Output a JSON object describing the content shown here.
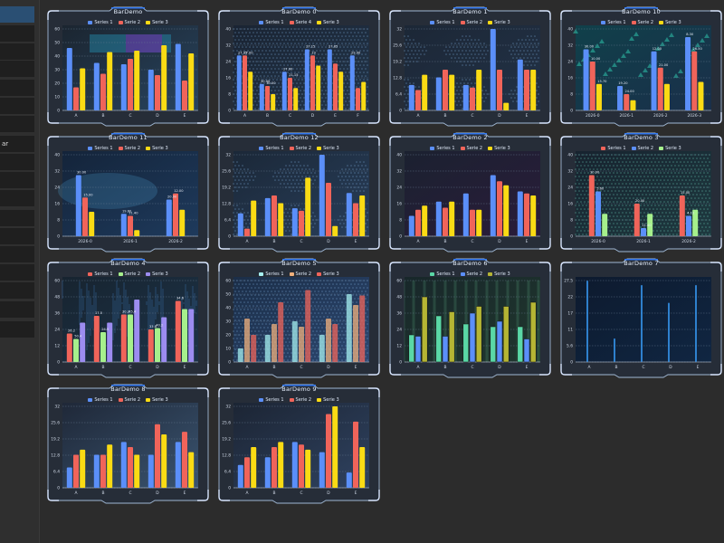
{
  "sidebar": {
    "items": [
      {
        "label": "",
        "selected": true
      },
      {
        "label": ""
      },
      {
        "label": ""
      },
      {
        "label": ""
      },
      {
        "label": ""
      },
      {
        "label": ""
      },
      {
        "label": ""
      },
      {
        "label": "ar"
      },
      {
        "label": ""
      },
      {
        "label": ""
      },
      {
        "label": ""
      },
      {
        "label": ""
      },
      {
        "label": ""
      },
      {
        "label": ""
      },
      {
        "label": ""
      },
      {
        "label": ""
      },
      {
        "label": ""
      },
      {
        "label": ""
      }
    ]
  },
  "colors": {
    "s1": "#5b8ff9",
    "s2": "#f0645a",
    "s3": "#fadb14",
    "s4": "#5ad8a6",
    "frame": "#9fb7d3",
    "glow": "#2f7bff"
  },
  "charts": [
    {
      "title": "BarDemo",
      "bg": "pattern1",
      "legend": [
        {
          "name": "Series 1",
          "color": "#5b8ff9"
        },
        {
          "name": "Serie 2",
          "color": "#f0645a"
        },
        {
          "name": "Serie 3",
          "color": "#fadb14"
        }
      ]
    },
    {
      "title": "BarDemo 0",
      "bg": "hex",
      "legend": [
        {
          "name": "Series 1",
          "color": "#5b8ff9"
        },
        {
          "name": "Serie 4",
          "color": "#f0645a"
        },
        {
          "name": "Serie 3",
          "color": "#fadb14"
        }
      ]
    },
    {
      "title": "BarDemo 1",
      "bg": "map",
      "legend": [
        {
          "name": "Series 1",
          "color": "#5b8ff9"
        },
        {
          "name": "Serie 2",
          "color": "#f0645a"
        },
        {
          "name": "Serie 3",
          "color": "#fadb14"
        }
      ]
    },
    {
      "title": "BarDemo 10",
      "bg": "teal",
      "legend": [
        {
          "name": "Series 1",
          "color": "#5b8ff9"
        },
        {
          "name": "Serie 2",
          "color": "#f0645a"
        },
        {
          "name": "Serie 3",
          "color": "#fadb14"
        }
      ]
    },
    {
      "title": "BarDemo 11",
      "bg": "space",
      "legend": [
        {
          "name": "Series 1",
          "color": "#5b8ff9"
        },
        {
          "name": "Serie 2",
          "color": "#f0645a"
        },
        {
          "name": "Serie 3",
          "color": "#fadb14"
        }
      ]
    },
    {
      "title": "BarDemo 12",
      "bg": "map2",
      "legend": [
        {
          "name": "Series 1",
          "color": "#5b8ff9"
        },
        {
          "name": "Serie 2",
          "color": "#f0645a"
        },
        {
          "name": "Serie 3",
          "color": "#fadb14"
        }
      ]
    },
    {
      "title": "BarDemo 2",
      "bg": "dark",
      "legend": [
        {
          "name": "Series 1",
          "color": "#5b8ff9"
        },
        {
          "name": "Serie 2",
          "color": "#f0645a"
        },
        {
          "name": "Serie 3",
          "color": "#fadb14"
        }
      ]
    },
    {
      "title": "BarDemo 3",
      "bg": "dots",
      "legend": [
        {
          "name": "Series 1",
          "color": "#f0645a"
        },
        {
          "name": "Serie 2",
          "color": "#5b8ff9"
        },
        {
          "name": "Serie 3",
          "color": "#a6f08c"
        }
      ]
    },
    {
      "title": "BarDemo 4",
      "bg": "rain",
      "legend": [
        {
          "name": "Series 1",
          "color": "#f0645a"
        },
        {
          "name": "Serie 2",
          "color": "#a6f08c"
        },
        {
          "name": "Serie 3",
          "color": "#9c8cf0"
        }
      ]
    },
    {
      "title": "BarDemo 5",
      "bg": "hexblue",
      "legend": [
        {
          "name": "Series 1",
          "color": "#a6f0f0"
        },
        {
          "name": "Serie 2",
          "color": "#f0b07c"
        },
        {
          "name": "Serie 3",
          "color": "#f0645a"
        }
      ]
    },
    {
      "title": "BarDemo 6",
      "bg": "green",
      "legend": [
        {
          "name": "Series 1",
          "color": "#5ad8a6"
        },
        {
          "name": "Serie 2",
          "color": "#5b8ff9"
        },
        {
          "name": "Serie 3",
          "color": "#b5b534"
        }
      ]
    },
    {
      "title": "BarDemo 7",
      "bg": "blueglow",
      "legend": []
    },
    {
      "title": "BarDemo 8",
      "bg": "light",
      "legend": [
        {
          "name": "Series 1",
          "color": "#5b8ff9"
        },
        {
          "name": "Serie 2",
          "color": "#f0645a"
        },
        {
          "name": "Serie 3",
          "color": "#fadb14"
        }
      ]
    },
    {
      "title": "BarDemo 9",
      "bg": "light2",
      "legend": [
        {
          "name": "Series 1",
          "color": "#5b8ff9"
        },
        {
          "name": "Serie 2",
          "color": "#f0645a"
        },
        {
          "name": "Serie 3",
          "color": "#fadb14"
        }
      ]
    }
  ],
  "chart_data": [
    {
      "type": "bar",
      "title": "BarDemo",
      "categories": [
        "A",
        "B",
        "C",
        "D",
        "E"
      ],
      "y_ticks": [
        "0",
        "10",
        "20",
        "30",
        "40",
        "50",
        "60"
      ],
      "ylim": [
        0,
        60
      ],
      "series": [
        {
          "name": "Series 1",
          "values": [
            46,
            35,
            34,
            30,
            49
          ]
        },
        {
          "name": "Serie 2",
          "values": [
            17,
            27,
            38,
            26,
            22
          ]
        },
        {
          "name": "Serie 3",
          "values": [
            31,
            43,
            44,
            48,
            42
          ]
        }
      ]
    },
    {
      "type": "bar",
      "title": "BarDemo 0",
      "categories": [
        "A",
        "B",
        "C",
        "D",
        "E",
        "F"
      ],
      "y_ticks": [
        "0",
        "8",
        "16",
        "24",
        "32",
        "40"
      ],
      "ylim": [
        0,
        40
      ],
      "series": [
        {
          "name": "Series 1",
          "values": [
            27,
            13,
            19,
            30,
            30,
            27
          ]
        },
        {
          "name": "Serie 4",
          "values": [
            27,
            12,
            16,
            27,
            23,
            11
          ]
        },
        {
          "name": "Serie 3",
          "values": [
            19,
            8,
            11,
            22,
            19,
            14
          ]
        }
      ],
      "labels": [
        "27.15",
        "30.00",
        "27.00",
        "27.15",
        "27.85",
        "29.00",
        "27.00",
        "30.00",
        "21.15",
        "19"
      ]
    },
    {
      "type": "bar",
      "title": "BarDemo 1",
      "categories": [
        "A",
        "B",
        "C",
        "D",
        "E"
      ],
      "y_ticks": [
        "0",
        "6.4",
        "12.8",
        "19.2",
        "25.6",
        "32"
      ],
      "ylim": [
        0,
        32
      ],
      "series": [
        {
          "name": "Series 1",
          "values": [
            10,
            13,
            10,
            32,
            20
          ]
        },
        {
          "name": "Serie 2",
          "values": [
            8,
            16,
            9,
            16,
            16
          ]
        },
        {
          "name": "Serie 3",
          "values": [
            14,
            14,
            16,
            3,
            16
          ]
        }
      ]
    },
    {
      "type": "bar",
      "title": "BarDemo 10",
      "categories": [
        "2026-0",
        "2026-1",
        "2026-2",
        "2026-3"
      ],
      "y_ticks": [
        "0",
        "8",
        "16",
        "24",
        "32",
        "40"
      ],
      "ylim": [
        0,
        40
      ],
      "series": [
        {
          "name": "Series 1",
          "values": [
            30,
            12,
            29,
            36
          ]
        },
        {
          "name": "Serie 2",
          "values": [
            24,
            8,
            21,
            29
          ]
        },
        {
          "name": "Serie 3",
          "values": [
            13,
            5,
            13,
            14
          ]
        }
      ],
      "labels": [
        "30.00",
        "19.20",
        "12.00",
        "8.30",
        "10.00",
        "24.00",
        "21.00",
        "26.50",
        "13.70"
      ]
    },
    {
      "type": "bar",
      "title": "BarDemo 11",
      "categories": [
        "2026-0",
        "2026-1",
        "2026-2"
      ],
      "y_ticks": [
        "0",
        "8",
        "16",
        "24",
        "32",
        "40"
      ],
      "ylim": [
        0,
        40
      ],
      "series": [
        {
          "name": "Series 1",
          "values": [
            30,
            11,
            18
          ]
        },
        {
          "name": "Serie 2",
          "values": [
            19,
            10,
            21
          ]
        },
        {
          "name": "Serie 3",
          "values": [
            12,
            3,
            13
          ]
        }
      ],
      "labels": [
        "30.00",
        "19.60",
        "20.00",
        "15.00",
        "11.40",
        "12.00"
      ]
    },
    {
      "type": "bar",
      "title": "BarDemo 12",
      "categories": [
        "A",
        "B",
        "C",
        "D",
        "E"
      ],
      "y_ticks": [
        "0",
        "6.4",
        "12.8",
        "19.2",
        "25.6",
        "32"
      ],
      "ylim": [
        0,
        32
      ],
      "series": [
        {
          "name": "Series 1",
          "values": [
            9,
            15,
            11,
            32,
            17
          ]
        },
        {
          "name": "Serie 2",
          "values": [
            3,
            16,
            10,
            21,
            13
          ]
        },
        {
          "name": "Serie 3",
          "values": [
            14,
            13,
            23,
            4,
            16
          ]
        }
      ]
    },
    {
      "type": "bar",
      "title": "BarDemo 2",
      "categories": [
        "A",
        "B",
        "C",
        "D",
        "E"
      ],
      "y_ticks": [
        "0",
        "8",
        "16",
        "24",
        "32",
        "40"
      ],
      "ylim": [
        0,
        40
      ],
      "series": [
        {
          "name": "Series 1",
          "values": [
            10,
            17,
            21,
            30,
            22
          ]
        },
        {
          "name": "Serie 2",
          "values": [
            13,
            14,
            13,
            27,
            21
          ]
        },
        {
          "name": "Serie 3",
          "values": [
            15,
            17,
            13,
            25,
            20
          ]
        }
      ]
    },
    {
      "type": "bar",
      "title": "BarDemo 3",
      "categories": [
        "2026-0",
        "2026-1",
        "2026-2"
      ],
      "y_ticks": [
        "0",
        "8",
        "16",
        "24",
        "32",
        "40"
      ],
      "ylim": [
        0,
        40
      ],
      "series": [
        {
          "name": "Series 1",
          "values": [
            30,
            16,
            20
          ]
        },
        {
          "name": "Serie 2",
          "values": [
            22,
            4,
            10
          ]
        },
        {
          "name": "Serie 3",
          "values": [
            11,
            11,
            13
          ]
        }
      ],
      "labels": [
        "30.00",
        "20.00",
        "15.00",
        "5.60",
        "11.40",
        "4.13"
      ]
    },
    {
      "type": "bar",
      "title": "BarDemo 4",
      "categories": [
        "A",
        "B",
        "C",
        "D",
        "E"
      ],
      "y_ticks": [
        "0",
        "12",
        "24",
        "36",
        "48",
        "60"
      ],
      "ylim": [
        0,
        60
      ],
      "series": [
        {
          "name": "Series 1",
          "values": [
            21,
            34,
            35,
            24,
            45
          ]
        },
        {
          "name": "Serie 2",
          "values": [
            17,
            22,
            35,
            25,
            39
          ]
        },
        {
          "name": "Serie 3",
          "values": [
            29,
            29,
            46,
            33,
            39
          ]
        }
      ],
      "labels": [
        "26.2",
        "17.5",
        "30.2",
        "33.8",
        "34.6",
        "50.4",
        "24.5",
        "45.4",
        "40.2"
      ]
    },
    {
      "type": "bar",
      "title": "BarDemo 5",
      "categories": [
        "A",
        "B",
        "C",
        "D",
        "E"
      ],
      "y_ticks": [
        "0",
        "10",
        "20",
        "30",
        "40",
        "50",
        "60"
      ],
      "ylim": [
        0,
        60
      ],
      "series": [
        {
          "name": "Series 1",
          "values": [
            10,
            20,
            30,
            20,
            50
          ]
        },
        {
          "name": "Serie 2",
          "values": [
            32,
            28,
            26,
            32,
            42
          ]
        },
        {
          "name": "Serie 3",
          "values": [
            20,
            44,
            53,
            28,
            49
          ]
        }
      ]
    },
    {
      "type": "bar",
      "title": "BarDemo 6",
      "categories": [
        "A",
        "B",
        "C",
        "D",
        "E"
      ],
      "y_ticks": [
        "0",
        "12",
        "24",
        "36",
        "48",
        "60"
      ],
      "ylim": [
        0,
        60
      ],
      "series": [
        {
          "name": "Series 1",
          "values": [
            20,
            34,
            28,
            26,
            26
          ]
        },
        {
          "name": "Serie 2",
          "values": [
            19,
            19,
            36,
            30,
            17
          ]
        },
        {
          "name": "Serie 3",
          "values": [
            48,
            37,
            41,
            41,
            44
          ]
        }
      ]
    },
    {
      "type": "bar",
      "title": "BarDemo 7",
      "categories": [
        "A",
        "B",
        "C",
        "D",
        "E"
      ],
      "y_ticks": [
        "0",
        "5.6",
        "11",
        "17",
        "22",
        "27.5"
      ],
      "ylim": [
        0,
        27.5
      ],
      "series": [
        {
          "name": "Series 1",
          "values": [
            27.5,
            8,
            26,
            20,
            26
          ]
        }
      ]
    },
    {
      "type": "bar",
      "title": "BarDemo 8",
      "categories": [
        "A",
        "B",
        "C",
        "D",
        "E"
      ],
      "y_ticks": [
        "0",
        "6.4",
        "12.8",
        "19.2",
        "25.6",
        "32"
      ],
      "ylim": [
        0,
        32
      ],
      "series": [
        {
          "name": "Series 1",
          "values": [
            8,
            13,
            18,
            13,
            18
          ]
        },
        {
          "name": "Serie 2",
          "values": [
            13,
            13,
            16,
            25,
            22
          ]
        },
        {
          "name": "Serie 3",
          "values": [
            15,
            17,
            13,
            21,
            14
          ]
        }
      ]
    },
    {
      "type": "bar",
      "title": "BarDemo 9",
      "categories": [
        "A",
        "B",
        "C",
        "D",
        "E"
      ],
      "y_ticks": [
        "0",
        "6.4",
        "12.8",
        "19.2",
        "25.6",
        "32"
      ],
      "ylim": [
        0,
        32
      ],
      "series": [
        {
          "name": "Series 1",
          "values": [
            9,
            12,
            18,
            14,
            6
          ]
        },
        {
          "name": "Serie 2",
          "values": [
            12,
            16,
            17,
            29,
            26
          ]
        },
        {
          "name": "Serie 3",
          "values": [
            16,
            18,
            15,
            32,
            16
          ]
        }
      ]
    }
  ]
}
